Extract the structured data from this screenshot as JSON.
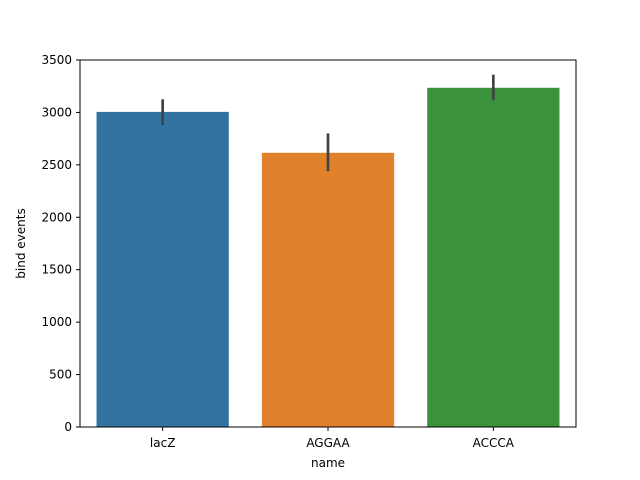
{
  "chart_data": {
    "type": "bar",
    "title": "",
    "xlabel": "name",
    "ylabel": "bind events",
    "categories": [
      "lacZ",
      "AGGAA",
      "ACCCA"
    ],
    "values": [
      3005,
      2615,
      3235
    ],
    "error_bars": [
      {
        "low": 2880,
        "high": 3125
      },
      {
        "low": 2440,
        "high": 2800
      },
      {
        "low": 3115,
        "high": 3360
      }
    ],
    "colors": [
      "#3274a1",
      "#e1812c",
      "#3a923a"
    ],
    "error_bar_color": "#424242",
    "ylim": [
      0,
      3500
    ],
    "yticks": [
      0,
      500,
      1000,
      1500,
      2000,
      2500,
      3000,
      3500
    ],
    "ytick_labels": [
      "0",
      "500",
      "1000",
      "1500",
      "2000",
      "2500",
      "3000",
      "3500"
    ],
    "grid": false,
    "legend": "none"
  }
}
